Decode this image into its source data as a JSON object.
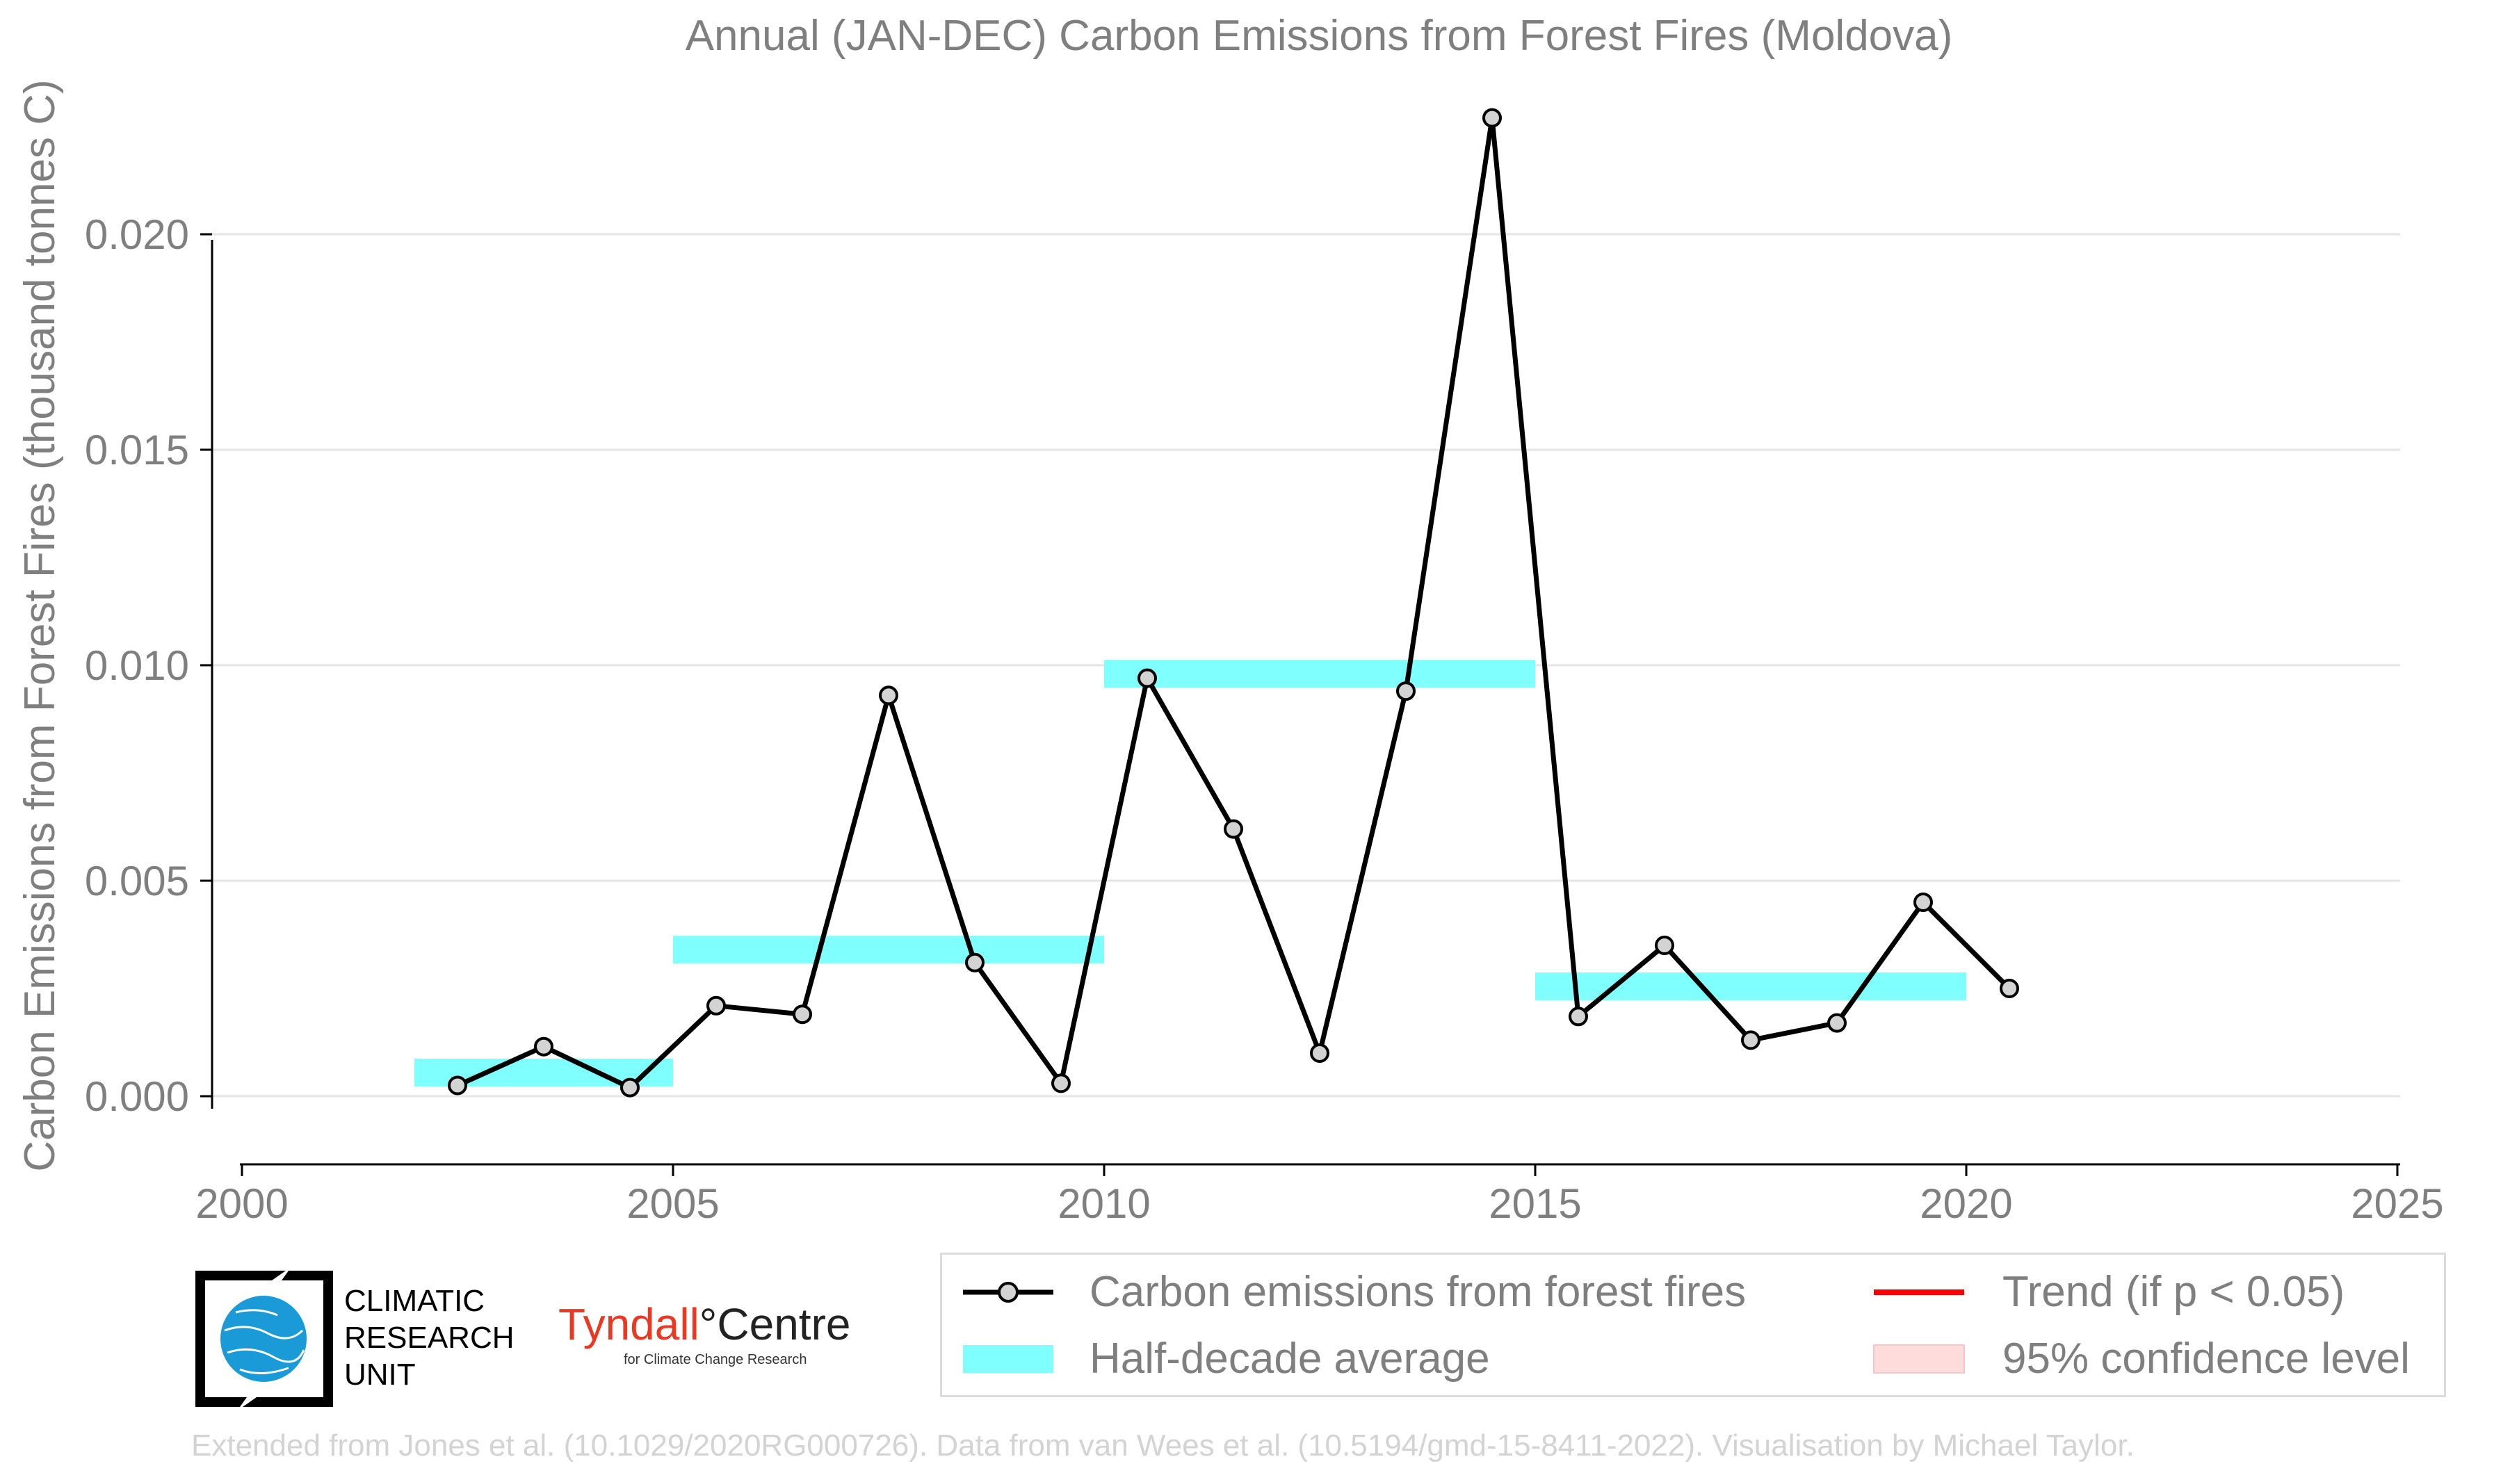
{
  "chart_data": {
    "type": "line",
    "title": "Annual (JAN-DEC) Carbon Emissions from Forest Fires (Moldova)",
    "xlabel": "",
    "ylabel": "Carbon Emissions from Forest Fires (thousand tonnes C)",
    "xlim": [
      2000,
      2025
    ],
    "ylim": [
      -0.0016,
      0.0228
    ],
    "x_ticks": [
      "2000",
      "2005",
      "2010",
      "2015",
      "2020",
      "2025"
    ],
    "y_ticks": [
      "0.000",
      "0.005",
      "0.010",
      "0.015",
      "0.020"
    ],
    "grid": "horizontal",
    "legend_position": "bottom-right",
    "series": [
      {
        "name": "Carbon emissions from forest fires",
        "style": "line-with-markers",
        "color": "#000000",
        "marker_color": "#d3d3d3",
        "x": [
          2002.5,
          2003.5,
          2004.5,
          2005.5,
          2006.5,
          2007.5,
          2008.5,
          2009.5,
          2010.5,
          2011.5,
          2012.5,
          2013.5,
          2014.5,
          2015.5,
          2016.5,
          2017.5,
          2018.5,
          2019.5,
          2020.5
        ],
        "values": [
          0.00025,
          0.00115,
          0.0002,
          0.0021,
          0.0019,
          0.0093,
          0.0031,
          0.0003,
          0.0097,
          0.0062,
          0.001,
          0.0094,
          0.0227,
          0.00185,
          0.0035,
          0.0013,
          0.0017,
          0.0045,
          0.0025
        ]
      },
      {
        "name": "Half-decade average",
        "style": "band",
        "color": "#80ffff",
        "segments": [
          {
            "x0": 2002,
            "x1": 2005,
            "value": 0.00055
          },
          {
            "x0": 2005,
            "x1": 2010,
            "value": 0.0034
          },
          {
            "x0": 2010,
            "x1": 2015,
            "value": 0.0098
          },
          {
            "x0": 2015,
            "x1": 2020,
            "value": 0.00255
          }
        ]
      }
    ],
    "legend": [
      {
        "label": "Carbon emissions from forest fires",
        "kind": "line-marker",
        "color": "#000000"
      },
      {
        "label": "Trend (if p < 0.05)",
        "kind": "line",
        "color": "#ff0000"
      },
      {
        "label": "Half-decade average",
        "kind": "band",
        "color": "#80ffff"
      },
      {
        "label": "95% confidence level",
        "kind": "band",
        "color": "#ffdcdc"
      }
    ]
  },
  "logos": {
    "cru_lines": [
      "CLIMATIC",
      "RESEARCH",
      "UNIT"
    ],
    "tyndall_name": "Tyndall",
    "tyndall_centre": "°Centre",
    "tyndall_sub": "for Climate Change Research"
  },
  "credit": "Extended from Jones et al. (10.1029/2020RG000726). Data from van Wees et al. (10.5194/gmd-15-8411-2022). Visualisation by Michael Taylor.",
  "colors": {
    "text": "#7f7f7f",
    "grid": "#e5e5e5",
    "axis": "#000000",
    "credit": "#d3d3d3"
  }
}
